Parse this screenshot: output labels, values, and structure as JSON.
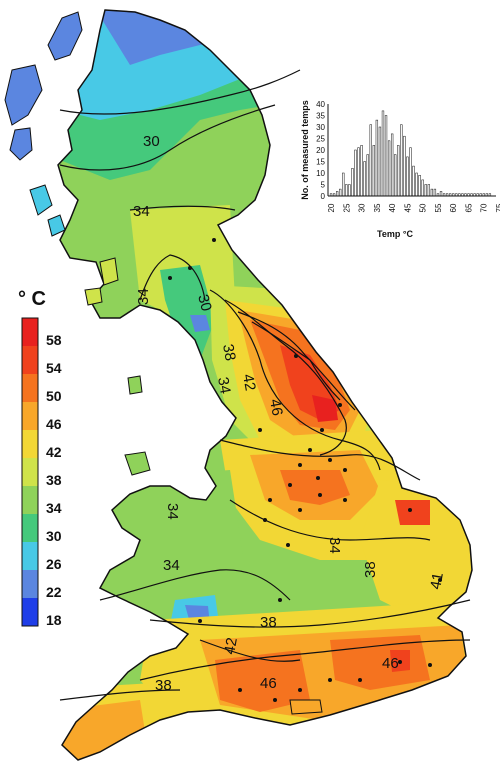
{
  "legend": {
    "title": "° C",
    "entries": [
      {
        "label": "58",
        "color": "#e8211f"
      },
      {
        "label": "54",
        "color": "#f0421d"
      },
      {
        "label": "50",
        "color": "#f5731f"
      },
      {
        "label": "46",
        "color": "#f8a72a"
      },
      {
        "label": "42",
        "color": "#f2d735"
      },
      {
        "label": "38",
        "color": "#cfe34a"
      },
      {
        "label": "34",
        "color": "#8fd25a"
      },
      {
        "label": "30",
        "color": "#45c97c"
      },
      {
        "label": "26",
        "color": "#48c9e6"
      },
      {
        "label": "22",
        "color": "#5b86e0"
      },
      {
        "label": "18",
        "color": "#1f3ee8"
      }
    ]
  },
  "contour_labels": [
    {
      "text": "30"
    },
    {
      "text": "34"
    },
    {
      "text": "34"
    },
    {
      "text": "30"
    },
    {
      "text": "38"
    },
    {
      "text": "34"
    },
    {
      "text": "42"
    },
    {
      "text": "46"
    },
    {
      "text": "34"
    },
    {
      "text": "34"
    },
    {
      "text": "34"
    },
    {
      "text": "38"
    },
    {
      "text": "38"
    },
    {
      "text": "42"
    },
    {
      "text": "46"
    },
    {
      "text": "46"
    },
    {
      "text": "38"
    },
    {
      "text": "41"
    }
  ],
  "chart_data": {
    "type": "bar",
    "xlabel": "Temp °C",
    "ylabel": "No. of measured temps",
    "xlim": [
      20,
      75
    ],
    "ylim": [
      0,
      40
    ],
    "xticks": [
      "20",
      "25",
      "30",
      "35",
      "40",
      "45",
      "50",
      "55",
      "60",
      "65",
      "70",
      "75"
    ],
    "yticks": [
      "0",
      "5",
      "10",
      "15",
      "20",
      "25",
      "30",
      "35",
      "40"
    ],
    "x": [
      21,
      22,
      23,
      24,
      25,
      26,
      27,
      28,
      29,
      30,
      31,
      32,
      33,
      34,
      35,
      36,
      37,
      38,
      39,
      40,
      41,
      42,
      43,
      44,
      45,
      46,
      47,
      48,
      49,
      50,
      51,
      52,
      53,
      54,
      55,
      56,
      57,
      58,
      59,
      60,
      61,
      62,
      63,
      64,
      65,
      66,
      67,
      68,
      69,
      70,
      71,
      72,
      73
    ],
    "values": [
      1,
      1,
      2,
      3,
      10,
      5,
      5,
      12,
      20,
      21,
      22,
      15,
      18,
      31,
      22,
      33,
      30,
      37,
      35,
      24,
      27,
      18,
      22,
      31,
      26,
      17,
      21,
      13,
      10,
      9,
      7,
      5,
      5,
      3,
      3,
      1,
      2,
      1,
      1,
      1,
      1,
      1,
      1,
      1,
      1,
      1,
      1,
      1,
      1,
      1,
      1,
      1,
      1
    ]
  }
}
